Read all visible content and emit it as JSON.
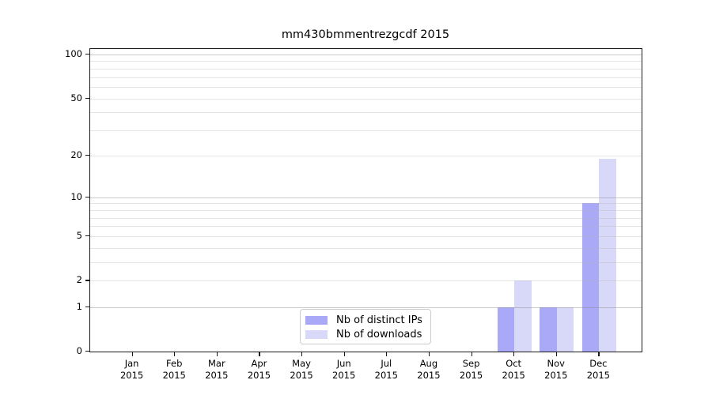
{
  "title": "mm430bmmentrezgcdf 2015",
  "chart_data": {
    "type": "bar",
    "title": "mm430bmmentrezgcdf 2015",
    "x_labels": [
      {
        "month": "Jan",
        "year": "2015"
      },
      {
        "month": "Feb",
        "year": "2015"
      },
      {
        "month": "Mar",
        "year": "2015"
      },
      {
        "month": "Apr",
        "year": "2015"
      },
      {
        "month": "May",
        "year": "2015"
      },
      {
        "month": "Jun",
        "year": "2015"
      },
      {
        "month": "Jul",
        "year": "2015"
      },
      {
        "month": "Aug",
        "year": "2015"
      },
      {
        "month": "Sep",
        "year": "2015"
      },
      {
        "month": "Oct",
        "year": "2015"
      },
      {
        "month": "Nov",
        "year": "2015"
      },
      {
        "month": "Dec",
        "year": "2015"
      }
    ],
    "series": [
      {
        "name": "Nb of distinct IPs",
        "color": "#a9a9f7",
        "values": [
          0,
          0,
          0,
          0,
          0,
          0,
          0,
          0,
          0,
          1,
          1,
          9
        ]
      },
      {
        "name": "Nb of downloads",
        "color": "#d8d8f8",
        "values": [
          0,
          0,
          0,
          0,
          0,
          0,
          0,
          0,
          0,
          2,
          1,
          19
        ]
      }
    ],
    "y_scale": "log1p",
    "ylim": [
      0,
      109
    ],
    "y_ticks": [
      0,
      1,
      2,
      5,
      10,
      20,
      50,
      100
    ],
    "gridlines": {
      "major": [
        1,
        10,
        100
      ],
      "minor": [
        2,
        3,
        4,
        5,
        6,
        7,
        8,
        9,
        20,
        30,
        40,
        50,
        60,
        70,
        80,
        90
      ]
    },
    "grid": true,
    "legend_position": "lower-center",
    "colors": {
      "major_grid": "rgba(140,140,140,0.45)",
      "minor_grid": "rgba(185,185,185,0.38)"
    }
  }
}
